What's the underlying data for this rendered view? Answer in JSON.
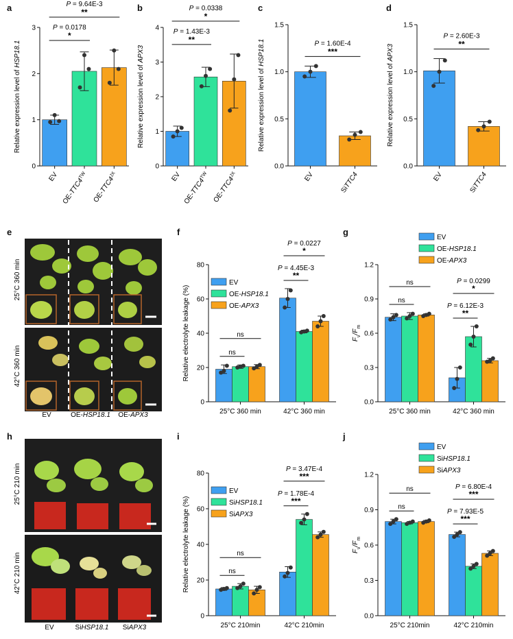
{
  "colors": {
    "blue": "#3f9ff0",
    "green": "#2fe29a",
    "orange": "#f7a21c",
    "photo_dark": "#1e1e1e",
    "pot_red": "#c8281e",
    "leaf_green": "#9ec83a",
    "leaf_yellow": "#d9c25a",
    "inset_border": "#b5652a"
  },
  "chart_data": [
    {
      "id": "a",
      "type": "bar",
      "categories": [
        "EV",
        "OE-TTC4^TW",
        "OE-TTC4^JX"
      ],
      "values": [
        1.0,
        2.05,
        2.13
      ],
      "errors": [
        0.1,
        0.42,
        0.38
      ],
      "points": [
        [
          0.95,
          1.1,
          0.97
        ],
        [
          1.7,
          2.4,
          2.1
        ],
        [
          1.8,
          2.5,
          2.1
        ]
      ],
      "colors": [
        "blue",
        "green",
        "orange"
      ],
      "ylabel": "Relative expression level of HSP18.1",
      "ylabel_pre": "Relative expression level of ",
      "ylabel_it": "HSP18.1",
      "ylim": [
        0,
        3
      ],
      "yticks": [
        0,
        1,
        2,
        3
      ],
      "ytick_labels": [
        "0",
        "1",
        "2",
        "3"
      ],
      "xlabels": [
        {
          "pre": "EV",
          "it": "",
          "sup": ""
        },
        {
          "pre": "OE-",
          "it": "TTC4",
          "sup": "TW"
        },
        {
          "pre": "OE-",
          "it": "TTC4",
          "sup": "JX"
        }
      ],
      "sig": [
        {
          "i": 0,
          "j": 1,
          "level": 1,
          "p": "P = 0.0178",
          "star": "*"
        },
        {
          "i": 0,
          "j": 2,
          "level": 2,
          "p": "P = 9.64E-3",
          "star": "**"
        }
      ]
    },
    {
      "id": "b",
      "type": "bar",
      "categories": [
        "EV",
        "OE-TTC4^TW",
        "OE-TTC4^JX"
      ],
      "values": [
        1.0,
        2.57,
        2.45
      ],
      "errors": [
        0.15,
        0.28,
        0.78
      ],
      "points": [
        [
          0.85,
          1.0,
          1.1
        ],
        [
          2.3,
          2.6,
          2.8
        ],
        [
          1.6,
          2.5,
          3.2
        ]
      ],
      "colors": [
        "blue",
        "green",
        "orange"
      ],
      "ylabel": "Relative expression level of APX3",
      "ylabel_pre": "Relative expression level of ",
      "ylabel_it": "APX3",
      "ylim": [
        0,
        4
      ],
      "yticks": [
        0,
        1,
        2,
        3,
        4
      ],
      "ytick_labels": [
        "0",
        "1",
        "2",
        "3",
        "4"
      ],
      "xlabels": [
        {
          "pre": "EV",
          "it": "",
          "sup": ""
        },
        {
          "pre": "OE-",
          "it": "TTC4",
          "sup": "TW"
        },
        {
          "pre": "OE-",
          "it": "TTC4",
          "sup": "JX"
        }
      ],
      "sig": [
        {
          "i": 0,
          "j": 1,
          "level": 1,
          "p": "P = 1.43E-3",
          "star": "**"
        },
        {
          "i": 0,
          "j": 2,
          "level": 2,
          "p": "P = 0.0338",
          "star": "*"
        }
      ]
    },
    {
      "id": "c",
      "type": "bar",
      "categories": [
        "EV",
        "SiTTC4"
      ],
      "values": [
        1.0,
        0.32
      ],
      "errors": [
        0.06,
        0.04
      ],
      "points": [
        [
          0.95,
          1.0,
          1.06
        ],
        [
          0.28,
          0.33,
          0.36
        ]
      ],
      "colors": [
        "blue",
        "orange"
      ],
      "ylabel": "Relative expression level of HSP18.1",
      "ylabel_pre": "Relative expression level of ",
      "ylabel_it": "HSP18.1",
      "ylim": [
        0,
        1.5
      ],
      "yticks": [
        0,
        0.5,
        1,
        1.5
      ],
      "ytick_labels": [
        "0.0",
        "0.5",
        "1.0",
        "1.5"
      ],
      "xlabels": [
        {
          "pre": "EV",
          "it": "",
          "sup": ""
        },
        {
          "pre": "Si",
          "it": "TTC4",
          "sup": ""
        }
      ],
      "sig": [
        {
          "i": 0,
          "j": 1,
          "level": 1,
          "p": "P = 1.60E-4",
          "star": "***"
        }
      ]
    },
    {
      "id": "d",
      "type": "bar",
      "categories": [
        "EV",
        "SiTTC4"
      ],
      "values": [
        1.01,
        0.42
      ],
      "errors": [
        0.13,
        0.05
      ],
      "points": [
        [
          0.85,
          1.0,
          1.12
        ],
        [
          0.38,
          0.42,
          0.47
        ]
      ],
      "colors": [
        "blue",
        "orange"
      ],
      "ylabel": "Relative expression level of APX3",
      "ylabel_pre": "Relative expression level of ",
      "ylabel_it": "APX3",
      "ylim": [
        0,
        1.5
      ],
      "yticks": [
        0,
        0.5,
        1,
        1.5
      ],
      "ytick_labels": [
        "0.0",
        "0.5",
        "1.0",
        "1.5"
      ],
      "xlabels": [
        {
          "pre": "EV",
          "it": "",
          "sup": ""
        },
        {
          "pre": "Si",
          "it": "TTC4",
          "sup": ""
        }
      ],
      "sig": [
        {
          "i": 0,
          "j": 1,
          "level": 1,
          "p": "P = 2.60E-3",
          "star": "**"
        }
      ]
    },
    {
      "id": "f",
      "type": "bar",
      "groups": [
        "25°C 360 min",
        "42°C 360 min"
      ],
      "series": [
        {
          "name": "EV",
          "name_pre": "EV",
          "name_it": "",
          "color": "blue",
          "values": [
            19,
            60.5
          ],
          "errors": [
            2.5,
            5.5
          ],
          "points": [
            [
              17,
              18,
              21
            ],
            [
              55,
              60,
              65
            ]
          ]
        },
        {
          "name": "OE-HSP18.1",
          "name_pre": "OE-",
          "name_it": "HSP18.1",
          "color": "green",
          "values": [
            20.5,
            41
          ],
          "errors": [
            1,
            0.8
          ],
          "points": [
            [
              20,
              20.5,
              21
            ],
            [
              40.5,
              41,
              41.5
            ]
          ]
        },
        {
          "name": "OE-APX3",
          "name_pre": "OE-",
          "name_it": "APX3",
          "color": "orange",
          "values": [
            20.5,
            47
          ],
          "errors": [
            1.2,
            3
          ],
          "points": [
            [
              19.5,
              20.5,
              21.5
            ],
            [
              44,
              47,
              50
            ]
          ]
        }
      ],
      "ylabel": "Relative electrolyte leakage (%)",
      "ylim": [
        0,
        80
      ],
      "yticks": [
        0,
        20,
        40,
        60,
        80
      ],
      "ytick_labels": [
        "0",
        "20",
        "40",
        "60",
        "80"
      ],
      "legend": "top-left",
      "sig": [
        {
          "g": 0,
          "i": 0,
          "j": 1,
          "level": 1,
          "p": "",
          "star": "ns"
        },
        {
          "g": 0,
          "i": 0,
          "j": 2,
          "level": 2,
          "p": "",
          "star": "ns"
        },
        {
          "g": 1,
          "i": 0,
          "j": 1,
          "level": 1,
          "p": "P = 4.45E-3",
          "star": "**"
        },
        {
          "g": 1,
          "i": 0,
          "j": 2,
          "level": 2,
          "p": "P = 0.0227",
          "star": "*"
        }
      ]
    },
    {
      "id": "g",
      "type": "bar",
      "groups": [
        "25°C 360 min",
        "42°C 360 min"
      ],
      "series": [
        {
          "name": "EV",
          "name_pre": "EV",
          "name_it": "",
          "color": "blue",
          "values": [
            0.74,
            0.21
          ],
          "errors": [
            0.03,
            0.09
          ],
          "points": [
            [
              0.72,
              0.74,
              0.76
            ],
            [
              0.12,
              0.2,
              0.3
            ]
          ]
        },
        {
          "name": "OE-HSP18.1",
          "name_pre": "OE-",
          "name_it": "HSP18.1",
          "color": "green",
          "values": [
            0.75,
            0.57
          ],
          "errors": [
            0.03,
            0.09
          ],
          "points": [
            [
              0.73,
              0.75,
              0.77
            ],
            [
              0.5,
              0.57,
              0.66
            ]
          ]
        },
        {
          "name": "OE-APX3",
          "name_pre": "OE-",
          "name_it": "APX3",
          "color": "orange",
          "values": [
            0.76,
            0.36
          ],
          "errors": [
            0.01,
            0.02
          ],
          "points": [
            [
              0.75,
              0.76,
              0.77
            ],
            [
              0.35,
              0.36,
              0.38
            ]
          ]
        }
      ],
      "ylabel": "Fv/Fm",
      "ylim": [
        0,
        1.2
      ],
      "yticks": [
        0,
        0.3,
        0.6,
        0.9,
        1.2
      ],
      "ytick_labels": [
        "0.0",
        "0.3",
        "0.6",
        "0.9",
        "1.2"
      ],
      "legend": "top-right",
      "sig": [
        {
          "g": 0,
          "i": 0,
          "j": 1,
          "level": 1,
          "p": "",
          "star": "ns"
        },
        {
          "g": 0,
          "i": 0,
          "j": 2,
          "level": 2,
          "p": "",
          "star": "ns"
        },
        {
          "g": 1,
          "i": 0,
          "j": 1,
          "level": 1,
          "p": "P = 6.12E-3",
          "star": "**"
        },
        {
          "g": 1,
          "i": 0,
          "j": 2,
          "level": 2,
          "p": "P = 0.0299",
          "star": "*"
        }
      ]
    },
    {
      "id": "i",
      "type": "bar",
      "groups": [
        "25°C 210min",
        "42°C 210min"
      ],
      "series": [
        {
          "name": "EV",
          "name_pre": "EV",
          "name_it": "",
          "color": "blue",
          "values": [
            15,
            24.5
          ],
          "errors": [
            0.8,
            3
          ],
          "points": [
            [
              14.5,
              15,
              15.5
            ],
            [
              22,
              24,
              27
            ]
          ]
        },
        {
          "name": "SiHSP18.1",
          "name_pre": "Si",
          "name_it": "HSP18.1",
          "color": "green",
          "values": [
            16.5,
            54
          ],
          "errors": [
            1.5,
            3
          ],
          "points": [
            [
              15.5,
              16.5,
              18
            ],
            [
              52,
              54,
              57
            ]
          ]
        },
        {
          "name": "SiAPX3",
          "name_pre": "Si",
          "name_it": "APX3",
          "color": "orange",
          "values": [
            14.5,
            45.5
          ],
          "errors": [
            2,
            1.5
          ],
          "points": [
            [
              12.5,
              14.5,
              16
            ],
            [
              44,
              45.5,
              47
            ]
          ]
        }
      ],
      "ylabel": "Relative electrolyte leakage (%)",
      "ylim": [
        0,
        80
      ],
      "yticks": [
        0,
        20,
        40,
        60,
        80
      ],
      "ytick_labels": [
        "0",
        "20",
        "40",
        "60",
        "80"
      ],
      "legend": "top-left",
      "sig": [
        {
          "g": 0,
          "i": 0,
          "j": 1,
          "level": 1,
          "p": "",
          "star": "ns"
        },
        {
          "g": 0,
          "i": 0,
          "j": 2,
          "level": 2,
          "p": "",
          "star": "ns"
        },
        {
          "g": 1,
          "i": 0,
          "j": 1,
          "level": 1,
          "p": "P = 1.78E-4",
          "star": "***"
        },
        {
          "g": 1,
          "i": 0,
          "j": 2,
          "level": 2,
          "p": "P = 3.47E-4",
          "star": "***"
        }
      ]
    },
    {
      "id": "j",
      "type": "bar",
      "groups": [
        "25°C 210min",
        "42°C 210min"
      ],
      "series": [
        {
          "name": "EV",
          "name_pre": "EV",
          "name_it": "",
          "color": "blue",
          "values": [
            0.8,
            0.69
          ],
          "errors": [
            0.02,
            0.02
          ],
          "points": [
            [
              0.78,
              0.8,
              0.82
            ],
            [
              0.67,
              0.69,
              0.71
            ]
          ]
        },
        {
          "name": "SiHSP18.1",
          "name_pre": "Si",
          "name_it": "HSP18.1",
          "color": "green",
          "values": [
            0.79,
            0.42
          ],
          "errors": [
            0.01,
            0.02
          ],
          "points": [
            [
              0.78,
              0.79,
              0.8
            ],
            [
              0.4,
              0.42,
              0.44
            ]
          ]
        },
        {
          "name": "SiAPX3",
          "name_pre": "Si",
          "name_it": "APX3",
          "color": "orange",
          "values": [
            0.8,
            0.53
          ],
          "errors": [
            0.01,
            0.02
          ],
          "points": [
            [
              0.79,
              0.8,
              0.81
            ],
            [
              0.51,
              0.53,
              0.55
            ]
          ]
        }
      ],
      "ylabel": "Fv/Fm",
      "ylim": [
        0,
        1.2
      ],
      "yticks": [
        0,
        0.3,
        0.6,
        0.9,
        1.2
      ],
      "ytick_labels": [
        "0.0",
        "0.3",
        "0.6",
        "0.9",
        "1.2"
      ],
      "legend": "top-right",
      "sig": [
        {
          "g": 0,
          "i": 0,
          "j": 1,
          "level": 1,
          "p": "",
          "star": "ns"
        },
        {
          "g": 0,
          "i": 0,
          "j": 2,
          "level": 2,
          "p": "",
          "star": "ns"
        },
        {
          "g": 1,
          "i": 0,
          "j": 1,
          "level": 1,
          "p": "P = 7.93E-5",
          "star": "***"
        },
        {
          "g": 1,
          "i": 0,
          "j": 2,
          "level": 2,
          "p": "P = 6.80E-4",
          "star": "***"
        }
      ]
    }
  ],
  "photos": {
    "e": {
      "letter": "e",
      "row1": "25°C 360 min",
      "row2": "42°C 360 min",
      "labels": [
        {
          "pre": "EV",
          "it": ""
        },
        {
          "pre": "OE-",
          "it": "HSP18.1"
        },
        {
          "pre": "OE-",
          "it": "APX3"
        }
      ]
    },
    "h": {
      "letter": "h",
      "row1": "25°C 210 min",
      "row2": "42°C 210 min",
      "labels": [
        {
          "pre": "EV",
          "it": ""
        },
        {
          "pre": "Si",
          "it": "HSP18.1"
        },
        {
          "pre": "Si",
          "it": "APX3"
        }
      ]
    }
  }
}
